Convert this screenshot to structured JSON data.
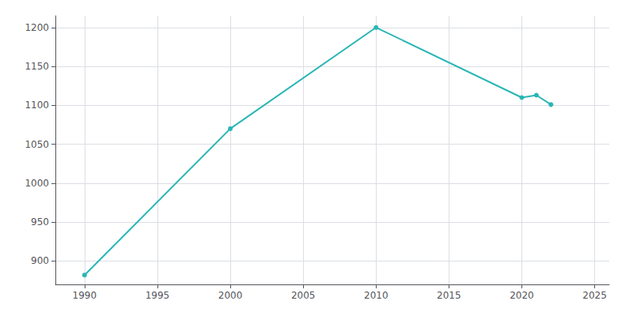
{
  "chart_data": {
    "type": "line",
    "x": [
      1990,
      2000,
      2010,
      2020,
      2021,
      2022
    ],
    "values": [
      882,
      1070,
      1200,
      1110,
      1113,
      1101
    ],
    "color": "#2ab5b5",
    "marker": "circle",
    "xlim": [
      1988,
      2026
    ],
    "ylim": [
      870,
      1215
    ],
    "xticks": [
      1990,
      1995,
      2000,
      2005,
      2010,
      2015,
      2020,
      2025
    ],
    "yticks": [
      900,
      950,
      1000,
      1050,
      1100,
      1150,
      1200
    ],
    "grid": true
  }
}
